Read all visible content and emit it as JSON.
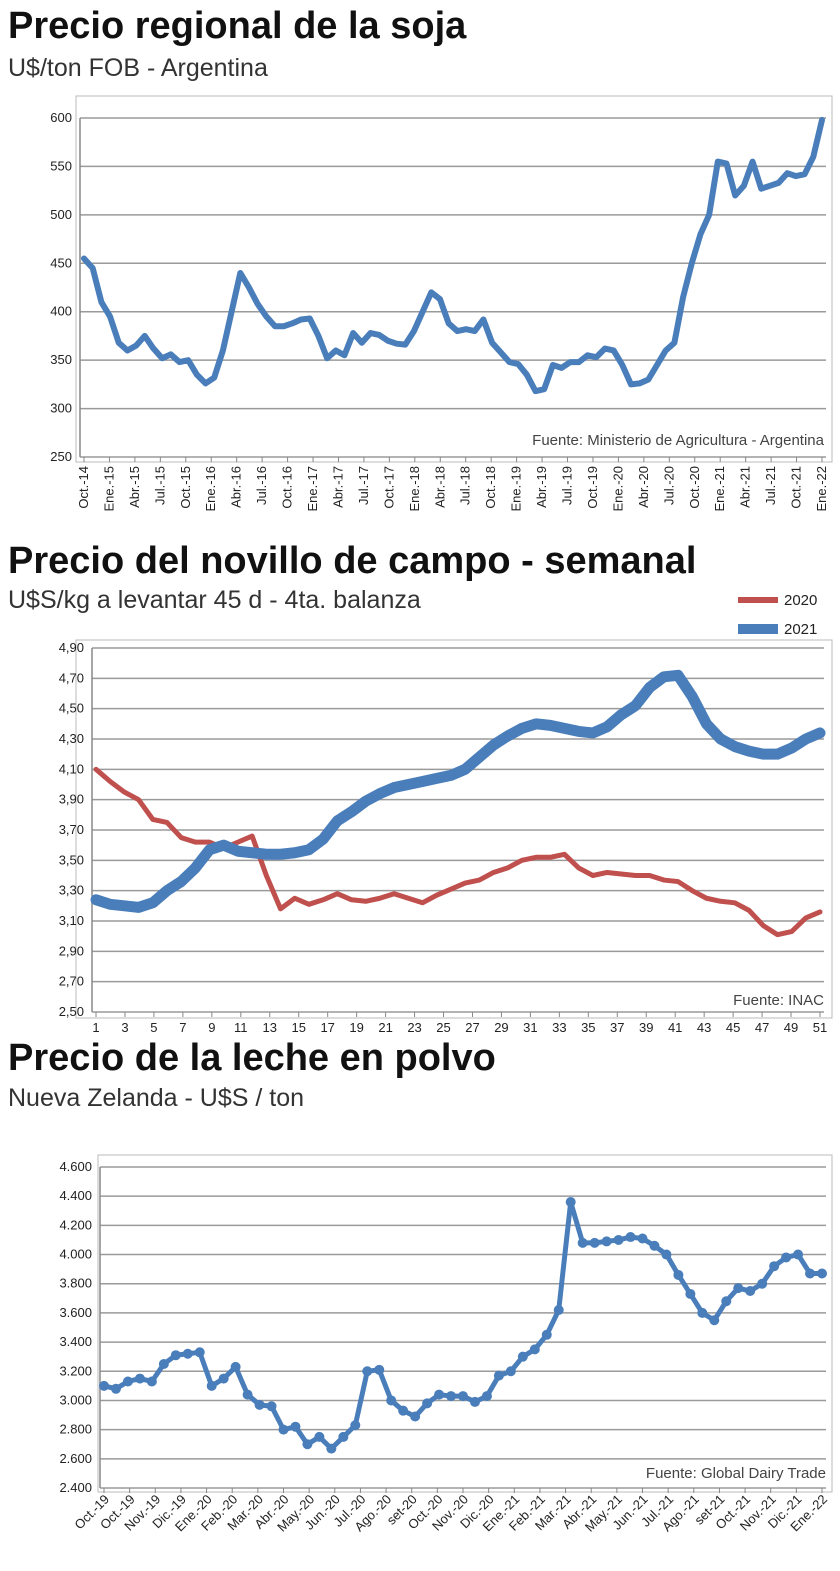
{
  "chart_data": [
    {
      "type": "line",
      "title": "Precio regional de la soja",
      "subtitle": "U$/ton FOB - Argentina",
      "source": "Fuente:  Ministerio de Agricultura - Argentina",
      "ylim": [
        250,
        600
      ],
      "yticks": [
        "250",
        "300",
        "350",
        "400",
        "450",
        "500",
        "550",
        "600"
      ],
      "ytick_values": [
        250,
        300,
        350,
        400,
        450,
        500,
        550,
        600
      ],
      "xtick_labels": [
        "Oct.-14",
        "Ene.-15",
        "Abr.-15",
        "Jul.-15",
        "Oct.-15",
        "Ene.-16",
        "Abr.-16",
        "Jul.-16",
        "Oct.-16",
        "Ene.-17",
        "Abr.-17",
        "Jul.-17",
        "Oct.-17",
        "Ene.-18",
        "Abr.-18",
        "Jul.-18",
        "Oct.-18",
        "Ene.-19",
        "Abr.-19",
        "Jul.-19",
        "Oct.-19",
        "Ene.-20",
        "Abr.-20",
        "Jul.-20",
        "Oct.-20",
        "Ene.-21",
        "Abr.-21",
        "Jul.-21",
        "Oct.-21",
        "Ene.-22"
      ],
      "grid": true,
      "series": [
        {
          "name": "Soja",
          "color": "#4a7ebb",
          "values": [
            455,
            445,
            410,
            395,
            368,
            360,
            365,
            375,
            362,
            352,
            356,
            348,
            350,
            335,
            326,
            332,
            360,
            400,
            440,
            425,
            408,
            395,
            385,
            385,
            388,
            392,
            393,
            375,
            352,
            360,
            355,
            378,
            368,
            378,
            376,
            370,
            367,
            366,
            380,
            400,
            420,
            413,
            388,
            380,
            382,
            380,
            392,
            368,
            358,
            348,
            346,
            335,
            318,
            320,
            345,
            342,
            348,
            348,
            355,
            353,
            362,
            360,
            345,
            325,
            326,
            330,
            345,
            360,
            368,
            415,
            450,
            480,
            500,
            555,
            553,
            520,
            530,
            555,
            527,
            530,
            533,
            543,
            540,
            542,
            560,
            598
          ]
        }
      ]
    },
    {
      "type": "line",
      "title": "Precio del novillo de campo - semanal",
      "subtitle": "U$S/kg a levantar 45 d - 4ta. balanza",
      "source": "Fuente: INAC",
      "ylim": [
        2.5,
        4.9
      ],
      "yticks": [
        "2,50",
        "2,70",
        "2,90",
        "3,10",
        "3,30",
        "3,50",
        "3,70",
        "3,90",
        "4,10",
        "4,30",
        "4,50",
        "4,70",
        "4,90"
      ],
      "ytick_values": [
        2.5,
        2.7,
        2.9,
        3.1,
        3.3,
        3.5,
        3.7,
        3.9,
        4.1,
        4.3,
        4.5,
        4.7,
        4.9
      ],
      "xtick_labels": [
        "1",
        "3",
        "5",
        "7",
        "9",
        "11",
        "13",
        "15",
        "17",
        "19",
        "21",
        "23",
        "25",
        "27",
        "29",
        "31",
        "33",
        "35",
        "37",
        "39",
        "41",
        "43",
        "45",
        "47",
        "49",
        "51"
      ],
      "legend": "top-right",
      "grid": true,
      "series": [
        {
          "name": "2020",
          "color": "#c0504d",
          "values": [
            4.1,
            4.02,
            3.95,
            3.9,
            3.77,
            3.75,
            3.65,
            3.62,
            3.62,
            3.58,
            3.62,
            3.66,
            3.4,
            3.18,
            3.25,
            3.21,
            3.24,
            3.28,
            3.24,
            3.23,
            3.25,
            3.28,
            3.25,
            3.22,
            3.27,
            3.31,
            3.35,
            3.37,
            3.42,
            3.45,
            3.5,
            3.52,
            3.52,
            3.54,
            3.45,
            3.4,
            3.42,
            3.41,
            3.4,
            3.4,
            3.37,
            3.36,
            3.3,
            3.25,
            3.23,
            3.22,
            3.17,
            3.07,
            3.01,
            3.03,
            3.12,
            3.16
          ]
        },
        {
          "name": "2021",
          "color": "#4a7ebb",
          "values": [
            3.24,
            3.21,
            3.2,
            3.19,
            3.22,
            3.3,
            3.36,
            3.45,
            3.57,
            3.6,
            3.56,
            3.55,
            3.54,
            3.54,
            3.55,
            3.57,
            3.64,
            3.76,
            3.82,
            3.89,
            3.94,
            3.98,
            4.0,
            4.02,
            4.04,
            4.06,
            4.1,
            4.18,
            4.26,
            4.32,
            4.37,
            4.4,
            4.39,
            4.37,
            4.35,
            4.34,
            4.38,
            4.46,
            4.52,
            4.64,
            4.71,
            4.72,
            4.58,
            4.4,
            4.3,
            4.25,
            4.22,
            4.2,
            4.2,
            4.24,
            4.3,
            4.34
          ]
        }
      ]
    },
    {
      "type": "line",
      "title": "Precio de la leche en polvo",
      "subtitle": "Nueva Zelanda - U$S / ton",
      "source": "Fuente: Global Dairy Trade",
      "ylim": [
        2400,
        4600
      ],
      "yticks": [
        "2.400",
        "2.600",
        "2.800",
        "3.000",
        "3.200",
        "3.400",
        "3.600",
        "3.800",
        "4.000",
        "4.200",
        "4.400",
        "4.600"
      ],
      "ytick_values": [
        2400,
        2600,
        2800,
        3000,
        3200,
        3400,
        3600,
        3800,
        4000,
        4200,
        4400,
        4600
      ],
      "xtick_labels": [
        "Oct.-19",
        "Oct.-19",
        "Nov.-19",
        "Dic.-19",
        "Ene.-20",
        "Feb.-20",
        "Mar.-20",
        "Abr.-20",
        "May.-20",
        "Jun.-20",
        "Jul.-20",
        "Ago.-20",
        "set-20",
        "Oct.-20",
        "Nov.-20",
        "Dic.-20",
        "Ene.-21",
        "Feb.-21",
        "Mar.-21",
        "Abr.-21",
        "May.-21",
        "Jun.-21",
        "Jul.-21",
        "Ago.-21",
        "set-21",
        "Oct.-21",
        "Nov.-21",
        "Dic.-21",
        "Ene.-22"
      ],
      "grid": true,
      "series": [
        {
          "name": "Leche en polvo",
          "color": "#4a7ebb",
          "values": [
            3100,
            3080,
            3130,
            3150,
            3130,
            3250,
            3310,
            3320,
            3330,
            3100,
            3150,
            3230,
            3040,
            2970,
            2960,
            2800,
            2820,
            2700,
            2750,
            2670,
            2750,
            2830,
            3200,
            3210,
            3000,
            2930,
            2890,
            2980,
            3040,
            3030,
            3030,
            2990,
            3030,
            3170,
            3200,
            3300,
            3350,
            3450,
            3620,
            4360,
            4080,
            4080,
            4090,
            4100,
            4120,
            4110,
            4060,
            4000,
            3860,
            3730,
            3600,
            3550,
            3680,
            3770,
            3750,
            3800,
            3920,
            3980,
            4000,
            3870,
            3870
          ]
        }
      ]
    }
  ]
}
